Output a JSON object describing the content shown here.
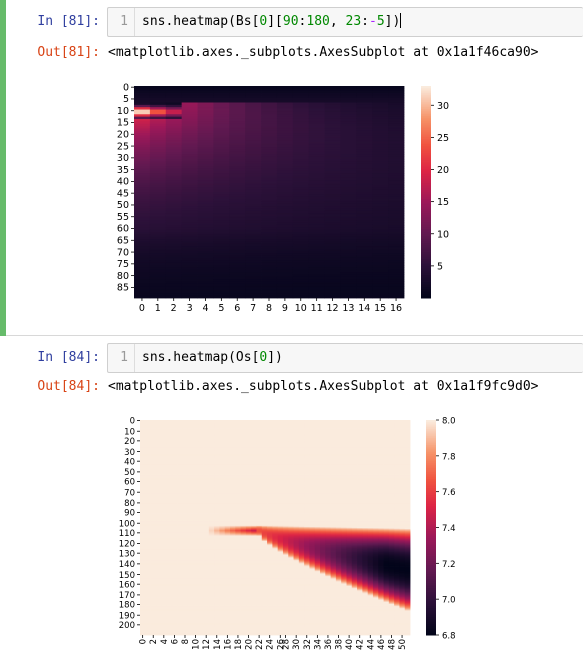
{
  "cells": [
    {
      "in_prompt": "In [81]:",
      "line_number": "1",
      "code": {
        "p1": "sns.heatmap(Bs[",
        "n1": "0",
        "p2": "][",
        "n2": "90",
        "p3": ":",
        "n3": "180",
        "p4": ", ",
        "n4": "23",
        "p5": ":",
        "o1": "-",
        "n5": "5",
        "p6": "])"
      },
      "out_prompt": "Out[81]:",
      "output": "<matplotlib.axes._subplots.AxesSubplot at 0x1a1f46ca90>"
    },
    {
      "in_prompt": "In [84]:",
      "line_number": "1",
      "code": {
        "p1": "sns.heatmap(Os[",
        "n1": "0",
        "p2": "])"
      },
      "out_prompt": "Out[84]:",
      "output": "<matplotlib.axes._subplots.AxesSubplot at 0x1a1f9fc9d0>"
    }
  ],
  "chart_data": [
    {
      "type": "heatmap",
      "colormap": "rocket",
      "rows": 90,
      "cols": 17,
      "y_tick_labels": [
        "0",
        "5",
        "10",
        "15",
        "20",
        "25",
        "30",
        "35",
        "40",
        "45",
        "50",
        "55",
        "60",
        "65",
        "70",
        "75",
        "80",
        "85"
      ],
      "x_tick_labels": [
        "0",
        "1",
        "2",
        "3",
        "4",
        "5",
        "6",
        "7",
        "8",
        "9",
        "10",
        "11",
        "12",
        "13",
        "14",
        "15",
        "16"
      ],
      "colorbar": {
        "vmin": 0,
        "vmax": 33,
        "ticks": [
          "5",
          "10",
          "15",
          "20",
          "25",
          "30"
        ]
      },
      "peak": {
        "value": 33,
        "rows": [
          9,
          12
        ],
        "col": 0
      }
    },
    {
      "type": "heatmap",
      "colormap": "rocket",
      "rows": 201,
      "cols": 51,
      "y_tick_labels": [
        "0",
        "10",
        "20",
        "30",
        "40",
        "50",
        "60",
        "70",
        "80",
        "90",
        "100",
        "110",
        "120",
        "130",
        "140",
        "150",
        "160",
        "170",
        "180",
        "190",
        "200"
      ],
      "x_tick_labels": [
        "0",
        "2",
        "4",
        "6",
        "8",
        "10",
        "12",
        "14",
        "16",
        "18",
        "20",
        "22",
        "24",
        "26",
        "28",
        "30",
        "32",
        "34",
        "36",
        "38",
        "40",
        "42",
        "44",
        "46",
        "48",
        "50"
      ],
      "colorbar": {
        "vmin": 6.8,
        "vmax": 8.0,
        "ticks": [
          "6.8",
          "7.0",
          "7.2",
          "7.4",
          "7.6",
          "7.8",
          "8.0"
        ]
      },
      "trough": {
        "value": 6.8,
        "row": 135,
        "col": 50
      }
    }
  ]
}
